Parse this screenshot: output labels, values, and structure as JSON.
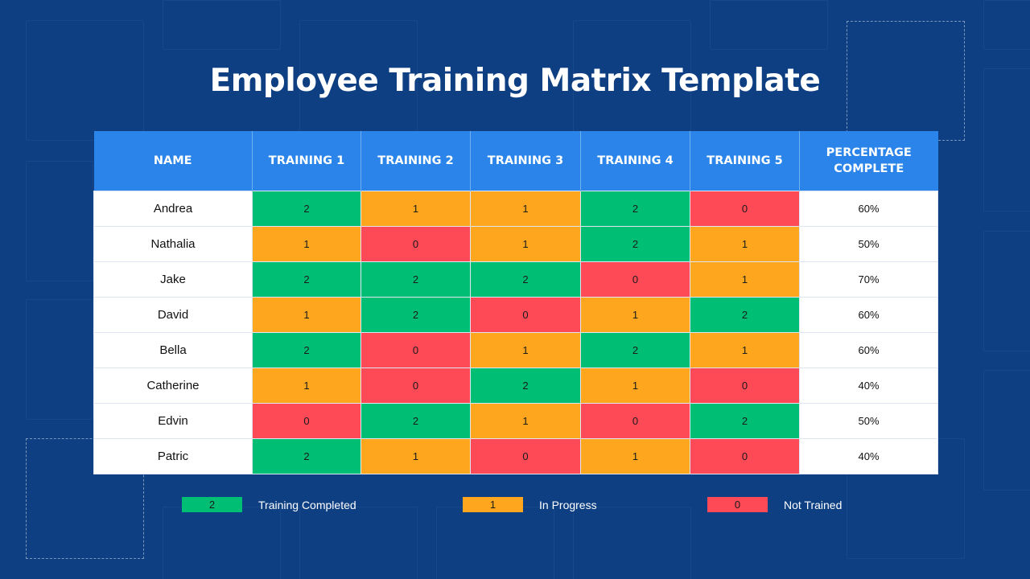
{
  "title": "Employee Training Matrix Template",
  "colors": {
    "2": "#00bf74",
    "1": "#fda61e",
    "0": "#fd4a56"
  },
  "table": {
    "headers": [
      "NAME",
      "TRAINING 1",
      "TRAINING 2",
      "TRAINING 3",
      "TRAINING 4",
      "TRAINING 5",
      "PERCENTAGE COMPLETE"
    ],
    "rows": [
      {
        "name": "Andrea",
        "scores": [
          "2",
          "1",
          "1",
          "2",
          "0"
        ],
        "percent": "60%"
      },
      {
        "name": "Nathalia",
        "scores": [
          "1",
          "0",
          "1",
          "2",
          "1"
        ],
        "percent": "50%"
      },
      {
        "name": "Jake",
        "scores": [
          "2",
          "2",
          "2",
          "0",
          "1"
        ],
        "percent": "70%"
      },
      {
        "name": "David",
        "scores": [
          "1",
          "2",
          "0",
          "1",
          "2"
        ],
        "percent": "60%"
      },
      {
        "name": "Bella",
        "scores": [
          "2",
          "0",
          "1",
          "2",
          "1"
        ],
        "percent": "60%"
      },
      {
        "name": "Catherine",
        "scores": [
          "1",
          "0",
          "2",
          "1",
          "0"
        ],
        "percent": "40%"
      },
      {
        "name": "Edvin",
        "scores": [
          "0",
          "2",
          "1",
          "0",
          "2"
        ],
        "percent": "50%"
      },
      {
        "name": "Patric",
        "scores": [
          "2",
          "1",
          "0",
          "1",
          "0"
        ],
        "percent": "40%"
      }
    ]
  },
  "legend": [
    {
      "value": "2",
      "label": "Training Completed"
    },
    {
      "value": "1",
      "label": "In Progress"
    },
    {
      "value": "0",
      "label": "Not Trained"
    }
  ]
}
